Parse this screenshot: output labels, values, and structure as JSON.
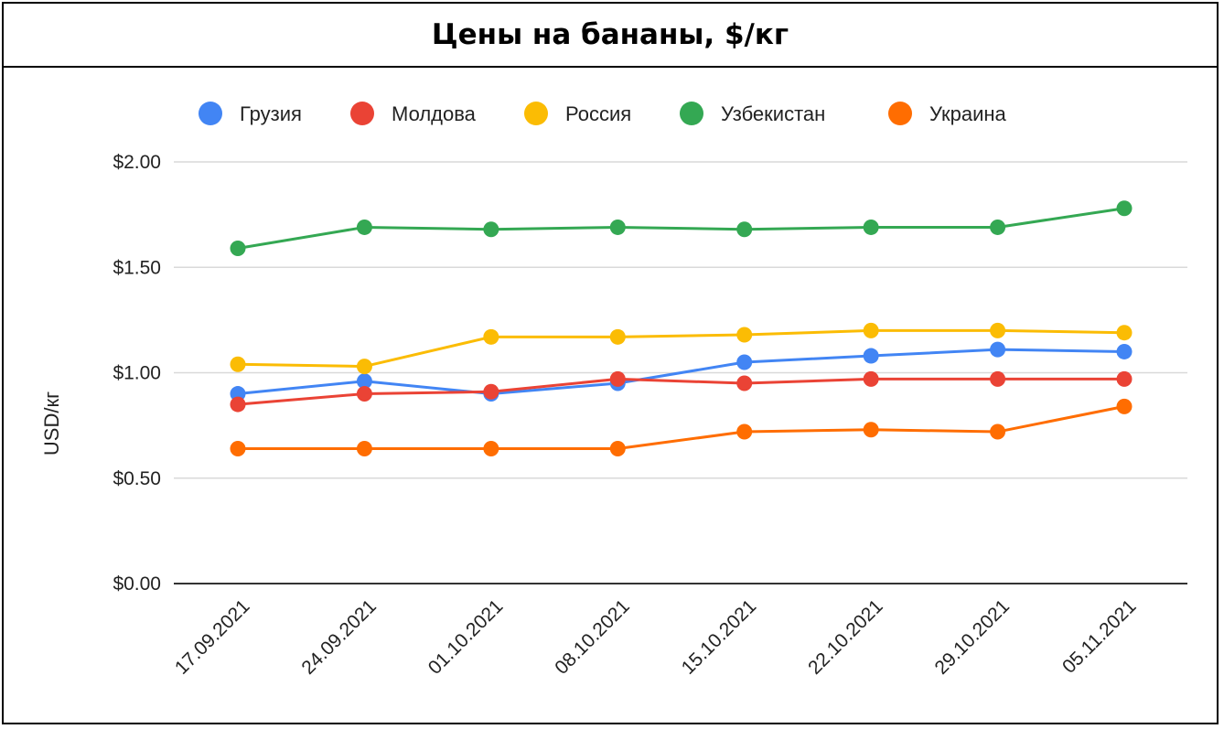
{
  "chart_data": {
    "type": "line",
    "title": "Цены на бананы, $/кг",
    "ylabel": "USD/кг",
    "xlabel": "",
    "categories": [
      "17.09.2021",
      "24.09.2021",
      "01.10.2021",
      "08.10.2021",
      "15.10.2021",
      "22.10.2021",
      "29.10.2021",
      "05.11.2021"
    ],
    "ylim": [
      0,
      2
    ],
    "yticks": [
      "$0.00",
      "$0.50",
      "$1.00",
      "$1.50",
      "$2.00"
    ],
    "ytick_values": [
      0,
      0.5,
      1.0,
      1.5,
      2.0
    ],
    "grid": true,
    "legend_position": "top",
    "series": [
      {
        "name": "Грузия",
        "color": "#4285f4",
        "values": [
          0.9,
          0.96,
          0.9,
          0.95,
          1.05,
          1.08,
          1.11,
          1.1
        ]
      },
      {
        "name": "Молдова",
        "color": "#ea4335",
        "values": [
          0.85,
          0.9,
          0.91,
          0.97,
          0.95,
          0.97,
          0.97,
          0.97
        ]
      },
      {
        "name": "Россия",
        "color": "#fbbc04",
        "values": [
          1.04,
          1.03,
          1.17,
          1.17,
          1.18,
          1.2,
          1.2,
          1.19
        ]
      },
      {
        "name": "Узбекистан",
        "color": "#34a853",
        "values": [
          1.59,
          1.69,
          1.68,
          1.69,
          1.68,
          1.69,
          1.69,
          1.78
        ]
      },
      {
        "name": "Украина",
        "color": "#ff6d01",
        "values": [
          0.64,
          0.64,
          0.64,
          0.64,
          0.72,
          0.73,
          0.72,
          0.84
        ]
      }
    ]
  }
}
